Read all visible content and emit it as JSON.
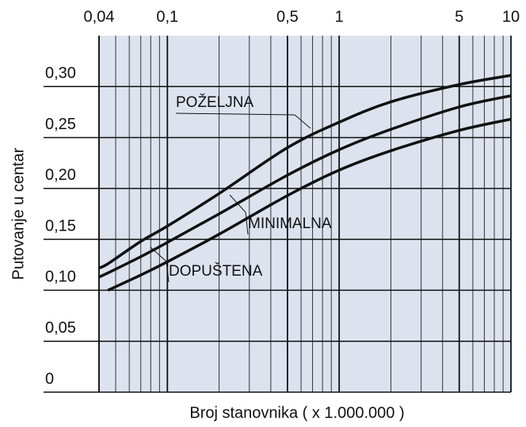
{
  "chart_data": {
    "type": "line",
    "xlabel": "Broj stanovnika ( x 1.000.000 )",
    "ylabel": "Putovanje u centar",
    "xscale": "log",
    "xlim": [
      0.04,
      10
    ],
    "xticks": [
      {
        "value": 0.04,
        "label": "0,04"
      },
      {
        "value": 0.1,
        "label": "0,1"
      },
      {
        "value": 0.5,
        "label": "0,5"
      },
      1,
      5,
      10
    ],
    "xminorticks": [
      0.05,
      0.06,
      0.07,
      0.08,
      0.09,
      0.2,
      0.3,
      0.4,
      0.6,
      0.7,
      0.8,
      0.9,
      2,
      3,
      4,
      6,
      7,
      8,
      9
    ],
    "ylim": [
      0,
      0.35
    ],
    "yticks": [
      0,
      {
        "value": 0.05,
        "label": "0,05"
      },
      {
        "value": 0.1,
        "label": "0,10"
      },
      {
        "value": 0.15,
        "label": "0,15"
      },
      {
        "value": 0.2,
        "label": "0,20"
      },
      {
        "value": 0.25,
        "label": "0,25"
      },
      {
        "value": 0.3,
        "label": "0,30"
      }
    ],
    "grid": true,
    "x": [
      0.04,
      0.045,
      0.07,
      0.1,
      0.2,
      0.5,
      1,
      2,
      5,
      10
    ],
    "series": [
      {
        "name": "POŽELJNA",
        "color": "#111111",
        "values": [
          0.122,
          0.126,
          0.148,
          0.163,
          0.195,
          0.24,
          0.265,
          0.285,
          0.302,
          0.311
        ]
      },
      {
        "name": "MINIMALNA",
        "color": "#111111",
        "values": [
          0.113,
          0.117,
          0.133,
          0.147,
          0.175,
          0.213,
          0.238,
          0.258,
          0.28,
          0.291
        ]
      },
      {
        "name": "DOPUŠTENA",
        "color": "#111111",
        "values": [
          null,
          0.1,
          0.115,
          0.128,
          0.155,
          0.193,
          0.218,
          0.237,
          0.257,
          0.268
        ]
      }
    ]
  }
}
